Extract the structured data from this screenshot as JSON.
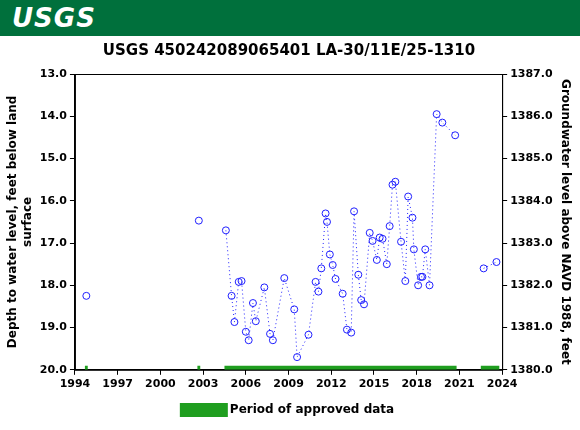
{
  "chart_data": {
    "type": "line",
    "logo_text": "USGS",
    "title": "USGS 450242089065401 LA-30/11E/25-1310",
    "y_label": [
      "Depth to water level, feet below land",
      "surface"
    ],
    "y2_label": "Groundwater level above NAVD 1988, feet",
    "x": [
      1994.8,
      null,
      2002.7,
      null,
      2004.6,
      2005.0,
      2005.2,
      2005.5,
      2005.7,
      2006.0,
      2006.2,
      2006.5,
      2006.7,
      2007.3,
      2007.7,
      2007.9,
      2008.7,
      2009.4,
      2009.6,
      2010.4,
      2010.9,
      2011.1,
      2011.3,
      2011.6,
      2011.7,
      2011.9,
      2012.1,
      2012.3,
      2012.8,
      2013.1,
      2013.4,
      2013.6,
      2013.9,
      2014.1,
      2014.3,
      2014.7,
      2014.9,
      2015.2,
      2015.4,
      2015.6,
      2015.9,
      2016.1,
      2016.3,
      2016.5,
      2016.9,
      2017.2,
      2017.4,
      2017.7,
      2017.8,
      2018.1,
      2018.3,
      2018.4,
      2018.6,
      2018.9,
      2019.4,
      2019.8,
      2020.7,
      null,
      2022.7,
      2023.6
    ],
    "series": [
      {
        "color": "#1f1fff",
        "marker": "circle",
        "line_style": "dotted",
        "values": [
          18.25,
          null,
          16.47,
          null,
          16.7,
          18.25,
          18.87,
          17.92,
          17.9,
          19.1,
          19.3,
          18.42,
          18.85,
          18.05,
          19.15,
          19.3,
          17.83,
          18.57,
          19.7,
          19.17,
          17.92,
          18.15,
          17.6,
          16.3,
          16.5,
          17.27,
          17.52,
          17.85,
          18.2,
          19.05,
          19.12,
          16.25,
          17.75,
          18.35,
          18.45,
          16.76,
          16.95,
          17.4,
          16.87,
          16.9,
          17.5,
          16.6,
          15.62,
          15.55,
          16.97,
          17.9,
          15.9,
          16.4,
          17.15,
          18.0,
          17.8,
          17.8,
          17.15,
          18.0,
          13.95,
          14.15,
          14.45,
          null,
          17.6,
          17.45
        ]
      }
    ],
    "approved_periods": {
      "name": "Period of approved data",
      "color": "#1f9e1f",
      "periods": [
        [
          1994.7,
          1994.9
        ],
        [
          2002.6,
          2002.8
        ],
        [
          2004.5,
          2020.8
        ],
        [
          2022.5,
          2023.8
        ]
      ]
    },
    "xlim": [
      1994,
      2024
    ],
    "xticks": [
      1994,
      1997,
      2000,
      2003,
      2006,
      2009,
      2012,
      2015,
      2018,
      2021,
      2024
    ],
    "ylim": [
      20,
      13
    ],
    "yticks": [
      {
        "value": 13,
        "label": "13.0"
      },
      {
        "value": 14,
        "label": "14.0"
      },
      {
        "value": 15,
        "label": "15.0"
      },
      {
        "value": 16,
        "label": "16.0"
      },
      {
        "value": 17,
        "label": "17.0"
      },
      {
        "value": 18,
        "label": "18.0"
      },
      {
        "value": 19,
        "label": "19.0"
      },
      {
        "value": 20,
        "label": "20.0"
      }
    ],
    "y2lim": [
      1380,
      1387
    ],
    "y2ticks": [
      {
        "value": 1380,
        "label": "1380.0"
      },
      {
        "value": 1381,
        "label": "1381.0"
      },
      {
        "value": 1382,
        "label": "1382.0"
      },
      {
        "value": 1383,
        "label": "1383.0"
      },
      {
        "value": 1384,
        "label": "1384.0"
      },
      {
        "value": 1385,
        "label": "1385.0"
      },
      {
        "value": 1386,
        "label": "1386.0"
      },
      {
        "value": 1387,
        "label": "1387.0"
      }
    ],
    "grid": false,
    "legend": "bottom"
  }
}
